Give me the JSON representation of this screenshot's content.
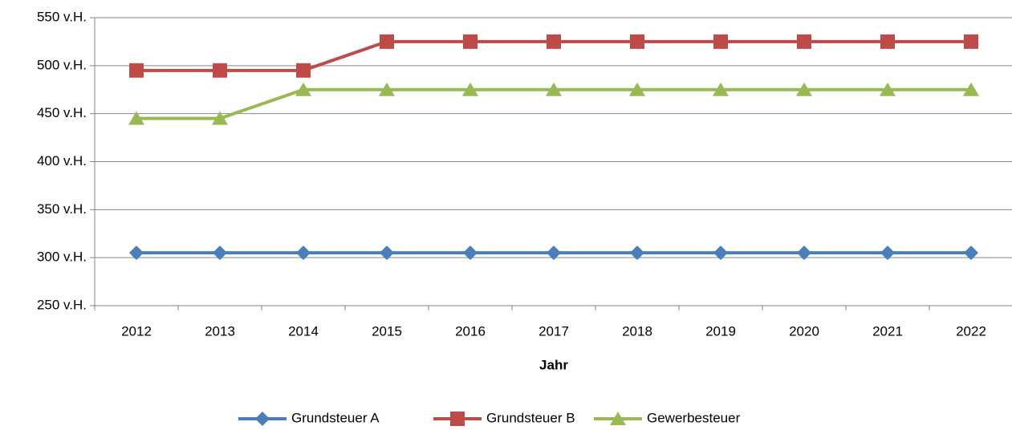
{
  "chart_data": {
    "type": "line",
    "x_label": "Jahr",
    "categories": [
      "2012",
      "2013",
      "2014",
      "2015",
      "2016",
      "2017",
      "2018",
      "2019",
      "2020",
      "2021",
      "2022"
    ],
    "series": [
      {
        "name": "Grundsteuer A",
        "color": "#4a7ebb",
        "marker": "diamond",
        "values": [
          305,
          305,
          305,
          305,
          305,
          305,
          305,
          305,
          305,
          305,
          305
        ]
      },
      {
        "name": "Grundsteuer B",
        "color": "#be4b48",
        "marker": "square",
        "values": [
          495,
          495,
          495,
          525,
          525,
          525,
          525,
          525,
          525,
          525,
          525
        ]
      },
      {
        "name": "Gewerbesteuer",
        "color": "#98b954",
        "marker": "triangle",
        "values": [
          445,
          445,
          475,
          475,
          475,
          475,
          475,
          475,
          475,
          475,
          475
        ]
      }
    ],
    "ylim": [
      250,
      550
    ],
    "yticks": [
      {
        "value": 250,
        "label": "250 v.H."
      },
      {
        "value": 300,
        "label": "300 v.H."
      },
      {
        "value": 350,
        "label": "350 v.H."
      },
      {
        "value": 400,
        "label": "400 v.H."
      },
      {
        "value": 450,
        "label": "450 v.H."
      },
      {
        "value": 500,
        "label": "500 v.H."
      },
      {
        "value": 550,
        "label": "550 v.H."
      }
    ],
    "grid": true,
    "legend": "bottom"
  }
}
